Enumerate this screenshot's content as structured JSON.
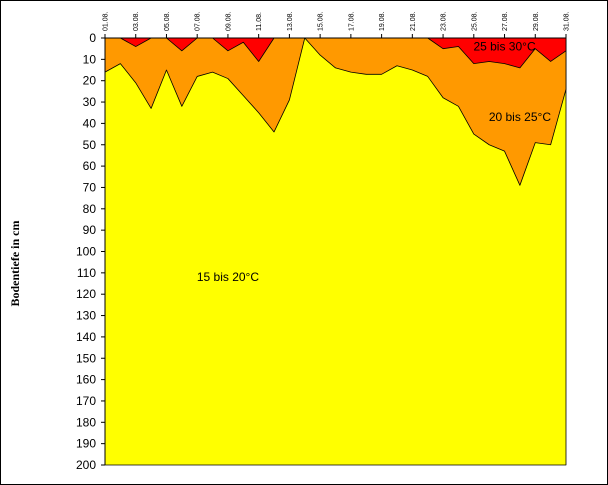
{
  "chart_data": {
    "type": "area",
    "ylabel": "Bodentiefe in cm",
    "ylim": [
      0,
      200
    ],
    "y_ticks": [
      0,
      10,
      20,
      30,
      40,
      50,
      60,
      70,
      80,
      90,
      100,
      110,
      120,
      130,
      140,
      150,
      160,
      170,
      180,
      190,
      200
    ],
    "y_reversed": true,
    "x_tick_labels": [
      "01.08.",
      "03.08.",
      "05.08.",
      "07.08.",
      "09.08.",
      "11.08.",
      "13.08.",
      "15.08.",
      "17.08.",
      "19.08.",
      "21.08.",
      "23.08.",
      "25.08.",
      "27.08.",
      "29.08.",
      "31.08."
    ],
    "x_days": [
      1,
      2,
      3,
      4,
      5,
      6,
      7,
      8,
      9,
      10,
      11,
      12,
      13,
      14,
      15,
      16,
      17,
      18,
      19,
      20,
      21,
      22,
      23,
      24,
      25,
      26,
      27,
      28,
      29,
      30,
      31
    ],
    "series": [
      {
        "name": "25 bis 30°C",
        "color": "#FF0000",
        "depths": [
          0,
          0,
          4,
          0,
          0,
          6,
          0,
          0,
          6,
          2,
          11,
          0,
          0,
          0,
          0,
          0,
          0,
          0,
          0,
          0,
          0,
          0,
          5,
          4,
          12,
          11,
          12,
          14,
          5,
          11,
          6
        ]
      },
      {
        "name": "20 bis 25°C",
        "color": "#FF9900",
        "depths": [
          16,
          12,
          21,
          33,
          15,
          32,
          18,
          16,
          19,
          27,
          35,
          44,
          29,
          0,
          8,
          14,
          16,
          17,
          17,
          13,
          15,
          18,
          28,
          32,
          45,
          50,
          53,
          69,
          49,
          50,
          24
        ]
      },
      {
        "name": "15 bis 20°C",
        "color": "#FFFF00",
        "depths": [
          200,
          200,
          200,
          200,
          200,
          200,
          200,
          200,
          200,
          200,
          200,
          200,
          200,
          200,
          200,
          200,
          200,
          200,
          200,
          200,
          200,
          200,
          200,
          200,
          200,
          200,
          200,
          200,
          200,
          200,
          200
        ]
      }
    ],
    "band_labels": [
      {
        "text": "25 bis 30°C",
        "day": 27,
        "depth": 4
      },
      {
        "text": "20 bis 25°C",
        "day": 28,
        "depth": 37
      },
      {
        "text": "15 bis 20°C",
        "day": 9,
        "depth": 112
      }
    ],
    "grid": false,
    "legend": "none"
  }
}
